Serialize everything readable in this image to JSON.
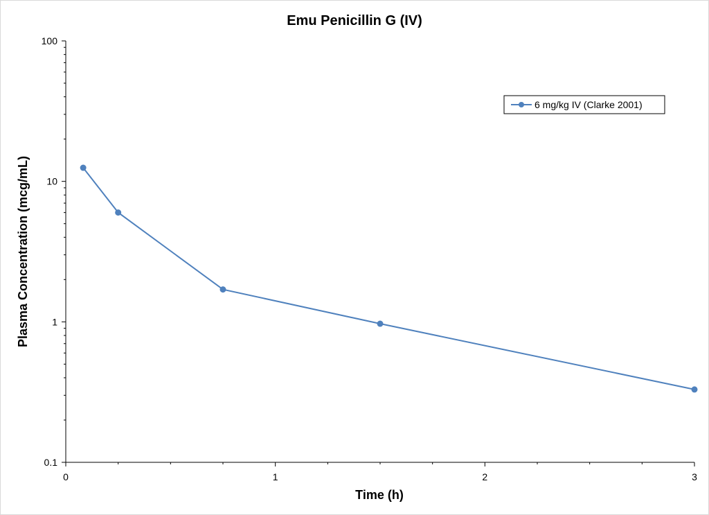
{
  "colors": {
    "series": "#4f81bd",
    "axis": "#000000",
    "background": "#ffffff"
  },
  "chart_data": {
    "type": "line",
    "title": "Emu Penicillin G (IV)",
    "xlabel": "Time (h)",
    "ylabel": "Plasma Concentration (mcg/mL)",
    "xlim": [
      0,
      3
    ],
    "ylim": [
      0.1,
      100
    ],
    "yscale": "log",
    "grid": false,
    "legend_position": "top-right",
    "x_ticks": [
      0,
      1,
      2,
      3
    ],
    "x_tick_labels": [
      "0",
      "1",
      "2",
      "3"
    ],
    "x_minor_step": 0.25,
    "y_ticks": [
      0.1,
      1,
      10,
      100
    ],
    "y_tick_labels": [
      "0.1",
      "1",
      "10",
      "100"
    ],
    "series": [
      {
        "name": "6 mg/kg IV (Clarke 2001)",
        "marker": "circle",
        "x": [
          0.083,
          0.25,
          0.75,
          1.5,
          3
        ],
        "y": [
          12.5,
          6.0,
          1.7,
          0.97,
          0.33
        ]
      }
    ]
  }
}
